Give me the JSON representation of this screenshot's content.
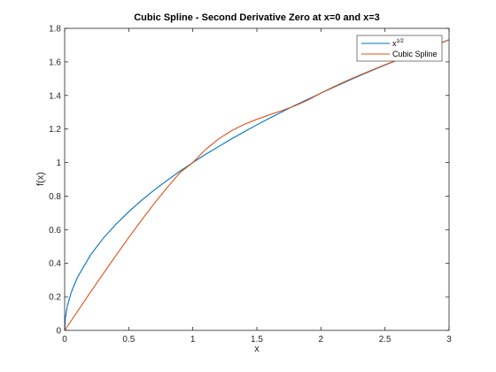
{
  "chart_data": {
    "type": "line",
    "title": "Cubic Spline - Second Derivative Zero at x=0 and x=3",
    "xlabel": "x",
    "ylabel": "f(x)",
    "xlim": [
      0,
      3
    ],
    "ylim": [
      0,
      1.8
    ],
    "xticks": [
      0,
      0.5,
      1,
      1.5,
      2,
      2.5,
      3
    ],
    "xtick_labels": [
      "0",
      "0.5",
      "1",
      "1.5",
      "2",
      "2.5",
      "3"
    ],
    "yticks": [
      0,
      0.2,
      0.4,
      0.6,
      0.8,
      1,
      1.2,
      1.4,
      1.6,
      1.8
    ],
    "ytick_labels": [
      "0",
      "0.2",
      "0.4",
      "0.6",
      "0.8",
      "1",
      "1.2",
      "1.4",
      "1.6",
      "1.8"
    ],
    "grid": false,
    "legend_position": "top-right",
    "series": [
      {
        "name_base": "x",
        "name_sup": "1/2",
        "color": "#0072BD",
        "x": [
          0,
          0.005,
          0.02,
          0.05,
          0.1,
          0.2,
          0.3,
          0.4,
          0.5,
          0.6,
          0.7,
          0.8,
          0.9,
          1.0,
          1.1,
          1.2,
          1.3,
          1.4,
          1.5,
          1.6,
          1.7,
          1.8,
          1.9,
          2.0,
          2.1,
          2.2,
          2.3,
          2.4,
          2.5,
          2.6,
          2.7,
          2.8,
          2.9,
          3.0
        ],
        "y": [
          0,
          0.071,
          0.141,
          0.224,
          0.316,
          0.447,
          0.548,
          0.632,
          0.707,
          0.775,
          0.837,
          0.894,
          0.949,
          1.0,
          1.049,
          1.095,
          1.14,
          1.183,
          1.225,
          1.265,
          1.304,
          1.342,
          1.378,
          1.414,
          1.449,
          1.483,
          1.517,
          1.549,
          1.581,
          1.612,
          1.643,
          1.673,
          1.703,
          1.732
        ]
      },
      {
        "name": "Cubic Spline",
        "color": "#D95319",
        "x": [
          0,
          0.1,
          0.2,
          0.3,
          0.4,
          0.5,
          0.6,
          0.7,
          0.8,
          0.9,
          1.0,
          1.1,
          1.2,
          1.3,
          1.4,
          1.5,
          1.6,
          1.7,
          1.8,
          1.9,
          2.0,
          2.1,
          2.2,
          2.3,
          2.4,
          2.5,
          2.6,
          2.7,
          2.8,
          2.9,
          3.0
        ],
        "y": [
          0,
          0.113,
          0.226,
          0.337,
          0.446,
          0.553,
          0.657,
          0.757,
          0.851,
          0.94,
          1.0,
          1.078,
          1.14,
          1.189,
          1.227,
          1.258,
          1.285,
          1.311,
          1.339,
          1.373,
          1.414,
          1.452,
          1.487,
          1.52,
          1.552,
          1.583,
          1.613,
          1.643,
          1.673,
          1.702,
          1.732
        ]
      }
    ]
  }
}
